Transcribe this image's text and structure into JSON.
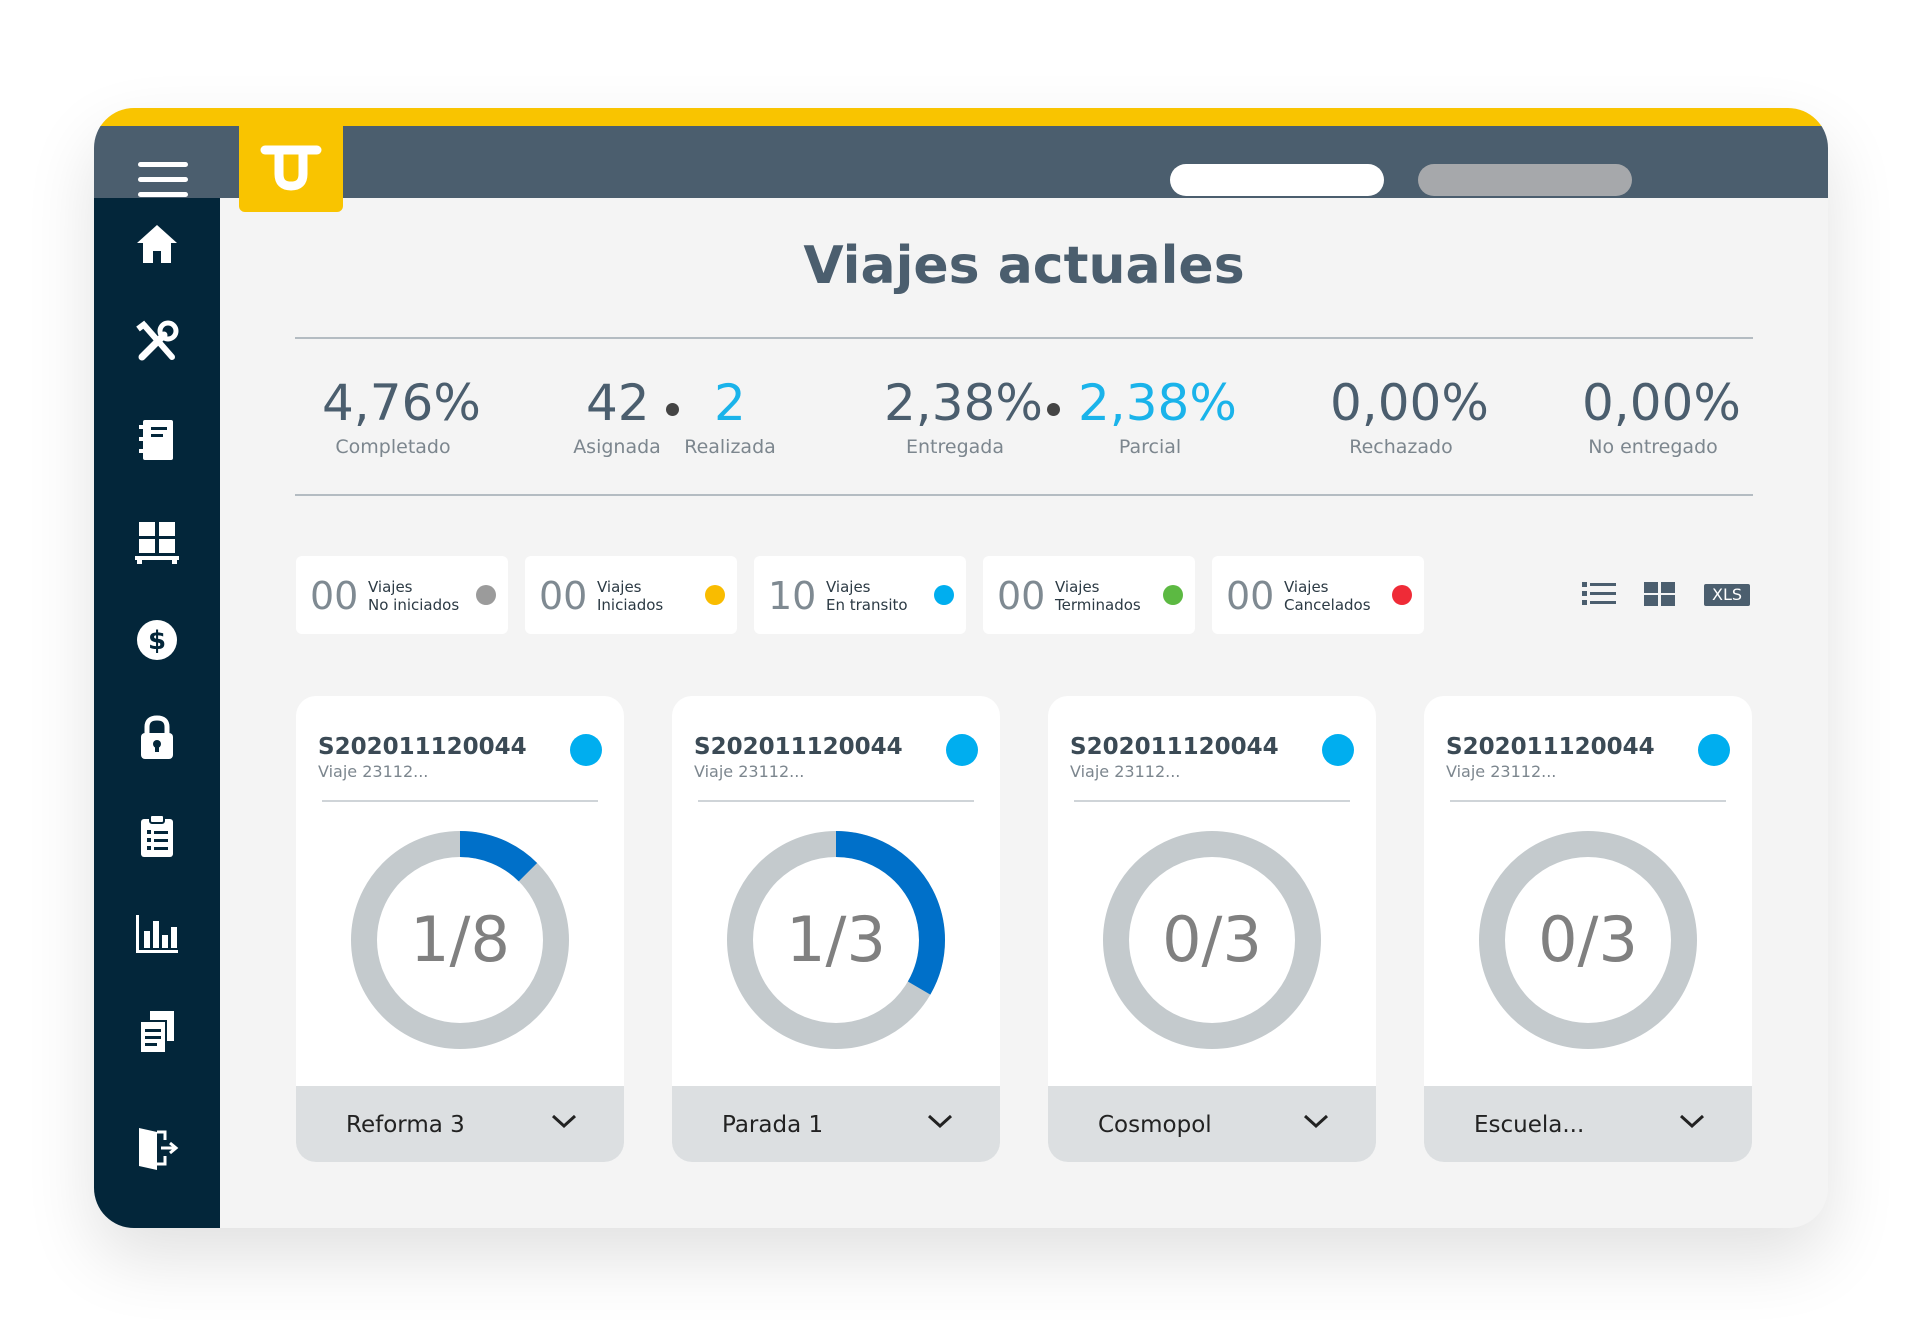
{
  "page": {
    "title": "Viajes actuales"
  },
  "header": {
    "menu_icon": "hamburger-menu-icon",
    "logo_icon": "company-logo-icon"
  },
  "sidebar": {
    "items": [
      {
        "icon": "home-icon"
      },
      {
        "icon": "tools-icon"
      },
      {
        "icon": "notebook-icon"
      },
      {
        "icon": "pallet-boxes-icon"
      },
      {
        "icon": "dollar-icon"
      },
      {
        "icon": "lock-icon"
      },
      {
        "icon": "clipboard-icon"
      },
      {
        "icon": "bar-chart-icon"
      },
      {
        "icon": "documents-icon"
      },
      {
        "icon": "logout-door-icon"
      }
    ]
  },
  "summary": {
    "completado": {
      "value": "4,76%",
      "label": "Completado"
    },
    "asignada": {
      "value": "42",
      "label": "Asignada"
    },
    "realizada": {
      "value": "2",
      "label": "Realizada"
    },
    "entregada": {
      "value": "2,38%",
      "label": "Entregada"
    },
    "parcial": {
      "value": "2,38%",
      "label": "Parcial"
    },
    "rechazado": {
      "value": "0,00%",
      "label": "Rechazado"
    },
    "no_entregado": {
      "value": "0,00%",
      "label": "No entregado"
    }
  },
  "statuses": [
    {
      "count": "00",
      "line1": "Viajes",
      "line2": "No iniciados",
      "color": "#9b9b9b"
    },
    {
      "count": "00",
      "line1": "Viajes",
      "line2": "Iniciados",
      "color": "#f9bc00"
    },
    {
      "count": "10",
      "line1": "Viajes",
      "line2": "En transito",
      "color": "#00aeef"
    },
    {
      "count": "00",
      "line1": "Viajes",
      "line2": "Terminados",
      "color": "#5cb942"
    },
    {
      "count": "00",
      "line1": "Viajes",
      "line2": "Cancelados",
      "color": "#ef2b37"
    }
  ],
  "toolbar": {
    "list_icon": "list-view-icon",
    "grid_icon": "grid-view-icon",
    "export_label": "XLS"
  },
  "cards": [
    {
      "code": "S202011120044",
      "subtitle": "Viaje 23112...",
      "fraction": "1/8",
      "done": 1,
      "total": 8,
      "place": "Reforma 3"
    },
    {
      "code": "S202011120044",
      "subtitle": "Viaje 23112...",
      "fraction": "1/3",
      "done": 1,
      "total": 3,
      "place": "Parada 1"
    },
    {
      "code": "S202011120044",
      "subtitle": "Viaje 23112...",
      "fraction": "0/3",
      "done": 0,
      "total": 3,
      "place": "Cosmopol"
    },
    {
      "code": "S202011120044",
      "subtitle": "Viaje 23112...",
      "fraction": "0/3",
      "done": 0,
      "total": 3,
      "place": "Escuela..."
    }
  ],
  "colors": {
    "accent": "#f9c400",
    "progress": "#0070c9",
    "track": "#c4cacd",
    "status_dot": "#00aeef"
  }
}
